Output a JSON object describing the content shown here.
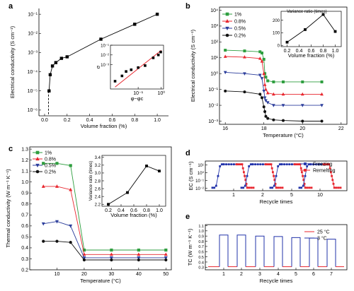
{
  "chart_data": [
    {
      "panel": "a",
      "type": "line",
      "xlabel": "Volume fraction (%)",
      "ylabel": "Electrical conductivity (S cm⁻¹)",
      "xticks": [
        "0.0",
        "0.2",
        "0.4",
        "0.6",
        "0.8",
        "1.0"
      ],
      "yticks": [
        "10⁻⁶",
        "10⁻⁵",
        "10⁻⁴",
        "10⁻³",
        "10⁻²",
        "10⁻¹"
      ],
      "xlim": [
        -0.05,
        1.1
      ],
      "ylog": [
        -6.3,
        -0.7
      ],
      "x": [
        0.04,
        0.05,
        0.07,
        0.1,
        0.15,
        0.2,
        0.5,
        0.8,
        1.0
      ],
      "y": [
        1e-05,
        7e-05,
        0.0002,
        0.0003,
        0.0005,
        0.0006,
        0.005,
        0.03,
        0.1
      ],
      "threshold_x": 0.035,
      "inset": {
        "type": "scatter",
        "xlabel": "φ−φc",
        "ylabel": "σ",
        "xticks": [
          "10⁻¹",
          "10⁰"
        ],
        "yticks": [
          "10⁻³",
          "10⁻²",
          "10⁻¹"
        ],
        "x": [
          0.01,
          0.02,
          0.03,
          0.05,
          0.1,
          0.2,
          0.45,
          0.75,
          0.95
        ],
        "y": [
          2e-05,
          7e-05,
          0.0002,
          0.0003,
          0.0005,
          0.0008,
          0.005,
          0.01,
          0.02
        ],
        "fit": {
          "x": [
            0.01,
            1.0
          ],
          "y": [
            5e-06,
            0.03
          ]
        }
      }
    },
    {
      "panel": "b",
      "type": "line",
      "xlabel": "Temperature (°C)",
      "ylabel": "Electrical conductivity (S cm⁻¹)",
      "xticks": [
        "16",
        "18",
        "20",
        "22"
      ],
      "yticks": [
        "10⁻³",
        "10⁻²",
        "10⁻¹",
        "10⁰",
        "10¹",
        "10²",
        "10³",
        "10⁴"
      ],
      "xlim": [
        15.7,
        22.3
      ],
      "ylog": [
        -3.2,
        4.2
      ],
      "x": [
        16,
        17,
        17.8,
        17.9,
        18,
        18.05,
        18.1,
        18.2,
        18.5,
        19,
        20,
        21
      ],
      "series": [
        {
          "name": "1%",
          "color": "#2e9e3f",
          "marker": "square",
          "y": [
            30,
            27,
            24,
            20,
            8,
            1,
            0.6,
            0.35,
            0.3,
            0.3,
            0.3,
            0.3
          ]
        },
        {
          "name": "0.8%",
          "color": "#e8262e",
          "marker": "triangle",
          "y": [
            12,
            11,
            9,
            6,
            1,
            0.2,
            0.1,
            0.06,
            0.05,
            0.05,
            0.05,
            0.05
          ]
        },
        {
          "name": "0.5%",
          "color": "#2c3e9c",
          "marker": "triangle-down",
          "y": [
            1.2,
            1,
            0.8,
            0.5,
            0.08,
            0.03,
            0.02,
            0.015,
            0.01,
            0.01,
            0.01,
            0.01
          ]
        },
        {
          "name": "0.2%",
          "color": "#111111",
          "marker": "circle",
          "y": [
            0.08,
            0.07,
            0.05,
            0.03,
            0.008,
            0.004,
            0.002,
            0.0015,
            0.0012,
            0.0011,
            0.001,
            0.001
          ]
        }
      ],
      "inset": {
        "type": "line",
        "xlabel": "Volume fraction (%)",
        "ylabel": "Variance ratio (times)",
        "xticks": [
          "0.2",
          "0.4",
          "0.6",
          "0.8",
          "1.0"
        ],
        "yticks": [
          "0",
          "100",
          "200"
        ],
        "x": [
          0.2,
          0.5,
          0.8,
          1.0
        ],
        "y": [
          25,
          125,
          245,
          110
        ]
      }
    },
    {
      "panel": "c",
      "type": "line",
      "xlabel": "Temperature (°C)",
      "ylabel": "Thermal conductivity (W m⁻¹ K⁻¹)",
      "xticks": [
        "10",
        "20",
        "30",
        "40",
        "50"
      ],
      "yticks": [
        "0.2",
        "0.3",
        "0.4",
        "0.5",
        "0.6",
        "0.7",
        "0.8",
        "0.9",
        "1.0",
        "1.1",
        "1.2",
        "1.3"
      ],
      "xlim": [
        0,
        52
      ],
      "ylim": [
        0.2,
        1.32
      ],
      "x": [
        5,
        10,
        15,
        20,
        30,
        40,
        50
      ],
      "series": [
        {
          "name": "1%",
          "color": "#2e9e3f",
          "marker": "square",
          "y": [
            1.17,
            1.17,
            1.15,
            0.38,
            0.38,
            0.38,
            0.38
          ]
        },
        {
          "name": "0.8%",
          "color": "#e8262e",
          "marker": "triangle",
          "y": [
            0.96,
            0.96,
            0.93,
            0.34,
            0.34,
            0.34,
            0.34
          ]
        },
        {
          "name": "0.5%",
          "color": "#2c3e9c",
          "marker": "triangle-down",
          "y": [
            0.62,
            0.64,
            0.6,
            0.31,
            0.31,
            0.31,
            0.31
          ]
        },
        {
          "name": "0.2%",
          "color": "#111111",
          "marker": "circle",
          "y": [
            0.46,
            0.46,
            0.45,
            0.29,
            0.29,
            0.29,
            0.29
          ]
        }
      ],
      "inset": {
        "type": "line",
        "xlabel": "Volume fraction (%)",
        "ylabel": "Variance ratio (times)",
        "xticks": [
          "0.2",
          "0.4",
          "0.6",
          "0.8",
          "1.0"
        ],
        "yticks": [
          "2.2",
          "2.4",
          "2.6",
          "2.8",
          "3.0",
          "3.2",
          "3.4"
        ],
        "x": [
          0.2,
          0.5,
          0.8,
          1.0
        ],
        "y": [
          2.2,
          2.5,
          3.18,
          3.05
        ]
      }
    },
    {
      "panel": "d",
      "type": "line",
      "xlabel": "Recycle times",
      "ylabel": "EC (S cm⁻¹)",
      "xticks": [
        "1",
        "2",
        "5",
        "10"
      ],
      "yticks": [
        "10⁻²",
        "10⁻¹",
        "10⁰",
        "10¹"
      ],
      "ylog": [
        -2.3,
        1.5
      ],
      "series": [
        {
          "name": "Freezing",
          "color": "#2233aa",
          "marker": "square"
        },
        {
          "name": "Remelting",
          "color": "#e8262e",
          "marker": "square"
        }
      ]
    },
    {
      "panel": "e",
      "type": "line",
      "xlabel": "Recycle times",
      "ylabel": "TC (W m⁻¹ K⁻¹)",
      "xticks": [
        "1",
        "2",
        "3",
        "4",
        "5",
        "6",
        "7"
      ],
      "yticks": [
        "0.3",
        "0.4",
        "0.5",
        "0.6",
        "0.7",
        "0.8",
        "0.9",
        "1.0",
        "1.1"
      ],
      "ylim": [
        0.25,
        1.12
      ],
      "high": [
        0.92,
        0.92,
        0.9,
        0.89,
        0.87,
        0.86,
        0.84
      ],
      "low": [
        0.31,
        0.31,
        0.31,
        0.31,
        0.31,
        0.31,
        0.31
      ],
      "series": [
        {
          "name": "25 °C",
          "color": "#e8262e"
        },
        {
          "name": "3 °C",
          "color": "#2233aa"
        }
      ]
    }
  ]
}
